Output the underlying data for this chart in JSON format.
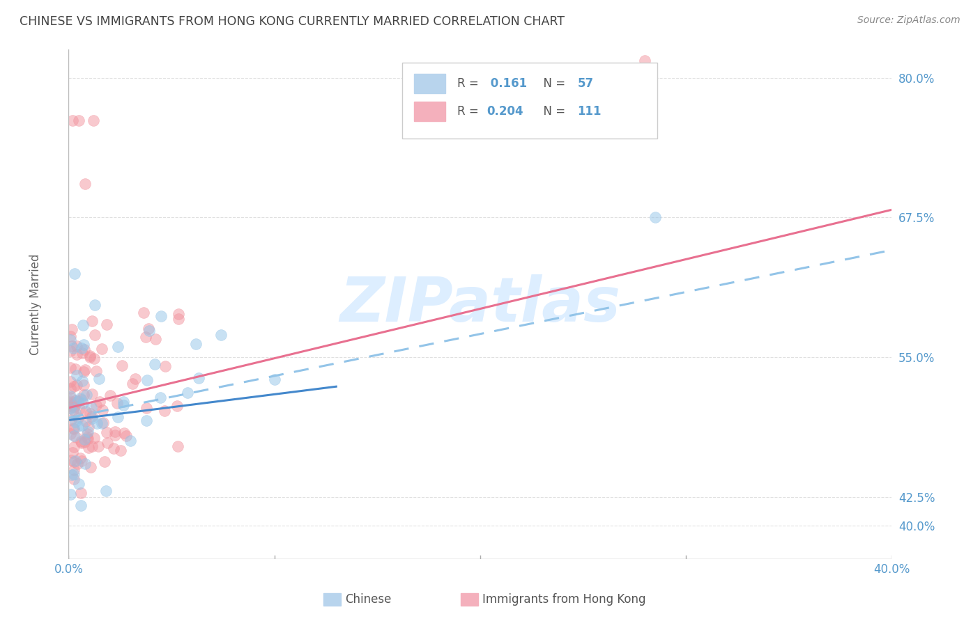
{
  "title": "CHINESE VS IMMIGRANTS FROM HONG KONG CURRENTLY MARRIED CORRELATION CHART",
  "source": "Source: ZipAtlas.com",
  "ylabel": "Currently Married",
  "blue_color": "#93c4e8",
  "pink_color": "#f2959f",
  "blue_line_color": "#93c4e8",
  "pink_line_color": "#e87090",
  "blue_solid_line_color": "#4488cc",
  "axis_label_color": "#5599cc",
  "title_color": "#444444",
  "grid_color": "#e0e0e0",
  "watermark_color": "#ddeeff",
  "xlim": [
    0.0,
    0.4
  ],
  "ylim": [
    0.37,
    0.825
  ],
  "ytick_positions": [
    0.4,
    0.425,
    0.55,
    0.675,
    0.8
  ],
  "ytick_labels": [
    "40.0%",
    "42.5%",
    "55.0%",
    "67.5%",
    "80.0%"
  ],
  "xtick_positions": [
    0.0,
    0.1,
    0.2,
    0.3,
    0.4
  ],
  "xtick_labels": [
    "0.0%",
    "",
    "",
    "",
    "40.0%"
  ],
  "blue_trend": [
    0.0,
    0.496,
    0.4,
    0.646
  ],
  "pink_trend": [
    0.0,
    0.505,
    0.4,
    0.682
  ],
  "blue_short_trend": [
    0.0,
    0.494,
    0.13,
    0.524
  ],
  "legend_blue_text1": "R = ",
  "legend_blue_val1": " 0.161",
  "legend_blue_text2": "  N = ",
  "legend_blue_val2": "57",
  "legend_pink_text1": "R = ",
  "legend_pink_val1": "0.204",
  "legend_pink_text2": "  N = ",
  "legend_pink_val2": "111",
  "bottom_label1": "Chinese",
  "bottom_label2": "Immigrants from Hong Kong",
  "chinese_N": 57,
  "hk_N": 111
}
